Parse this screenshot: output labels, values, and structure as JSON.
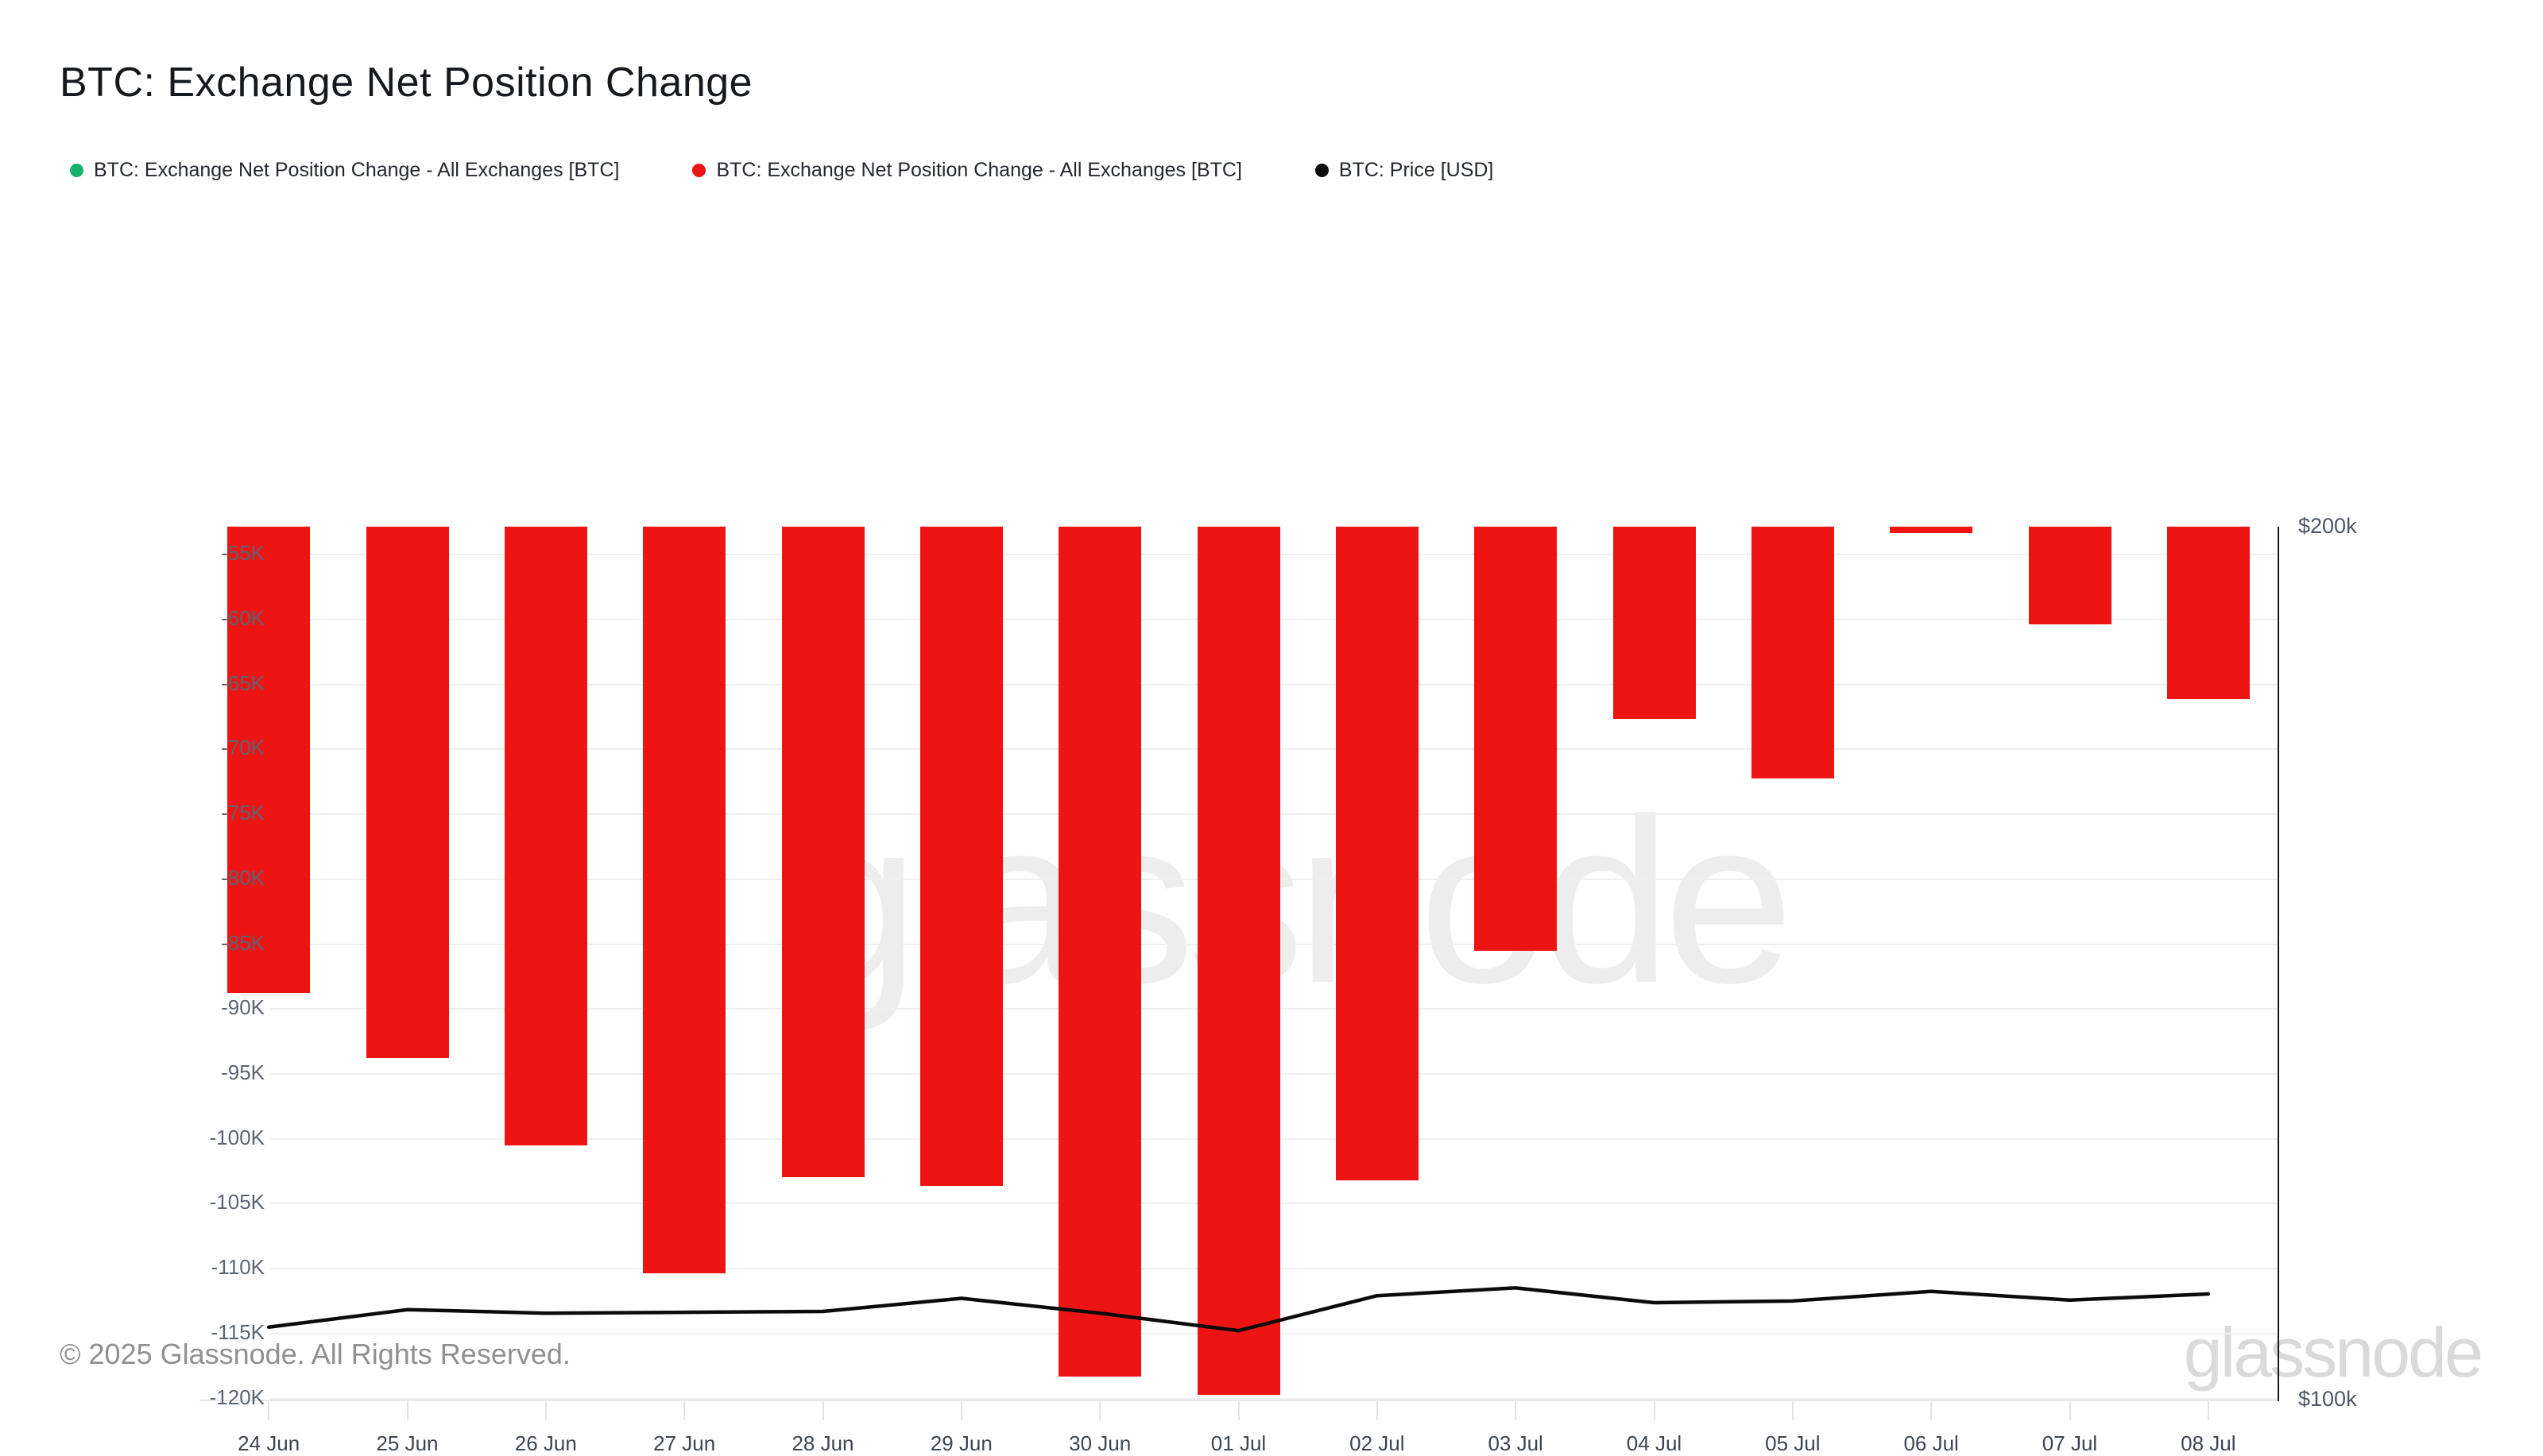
{
  "header": {
    "title": "BTC: Exchange Net Position Change"
  },
  "legend": [
    {
      "label": "BTC: Exchange Net Position Change - All Exchanges [BTC]",
      "color": "#18b16e",
      "name": "legend-item-net-position-green"
    },
    {
      "label": "BTC: Exchange Net Position Change - All Exchanges [BTC]",
      "color": "#ee1414",
      "name": "legend-item-net-position-red"
    },
    {
      "label": "BTC: Price [USD]",
      "color": "#0b0b0b",
      "name": "legend-item-price"
    }
  ],
  "watermark": {
    "text": "glassnode"
  },
  "colors": {
    "bar_negative": "#ee1414",
    "price_line": "#0b0b0b",
    "grid": "#efefef",
    "axis_right": "#15181d",
    "axis_bottom": "#e8e8e8"
  },
  "chart_data": {
    "type": "bar",
    "title": "BTC: Exchange Net Position Change",
    "categories": [
      "24 Jun",
      "25 Jun",
      "26 Jun",
      "27 Jun",
      "28 Jun",
      "29 Jun",
      "30 Jun",
      "01 Jul",
      "02 Jul",
      "03 Jul",
      "04 Jul",
      "05 Jul",
      "06 Jul",
      "07 Jul",
      "08 Jul"
    ],
    "series": [
      {
        "name": "BTC: Exchange Net Position Change - All Exchanges [BTC]",
        "type": "bar",
        "color": "#ee1414",
        "values": [
          -88800,
          -93850,
          -100550,
          -110450,
          -103000,
          -103700,
          -118400,
          -119800,
          -103250,
          -85600,
          -67700,
          -72300,
          -53400,
          -60400,
          -66200
        ]
      },
      {
        "name": "BTC: Price [USD]",
        "type": "line",
        "color": "#0b0b0b",
        "values": [
          108300,
          110300,
          109900,
          110000,
          110100,
          111600,
          109900,
          107900,
          111900,
          112800,
          111100,
          111300,
          112400,
          111400,
          112100
        ]
      }
    ],
    "left_axis": {
      "tick_labels": [
        "-55K",
        "-60K",
        "-65K",
        "-70K",
        "-75K",
        "-80K",
        "-85K",
        "-90K",
        "-95K",
        "-100K",
        "-105K",
        "-110K",
        "-115K",
        "-120K"
      ],
      "tick_values": [
        -55000,
        -60000,
        -65000,
        -70000,
        -75000,
        -80000,
        -85000,
        -90000,
        -95000,
        -100000,
        -105000,
        -110000,
        -115000,
        -120000
      ],
      "domain_top": -52900,
      "domain_bottom": -120150,
      "grid": true
    },
    "right_axis": {
      "tick_labels": [
        "$200k",
        "$100k"
      ],
      "tick_values": [
        200000,
        100000
      ],
      "domain_top": 200000,
      "domain_bottom": 100000
    },
    "legend_position": "top-left"
  },
  "footer": {
    "copyright": "© 2025 Glassnode. All Rights Reserved.",
    "brand": "glassnode"
  }
}
